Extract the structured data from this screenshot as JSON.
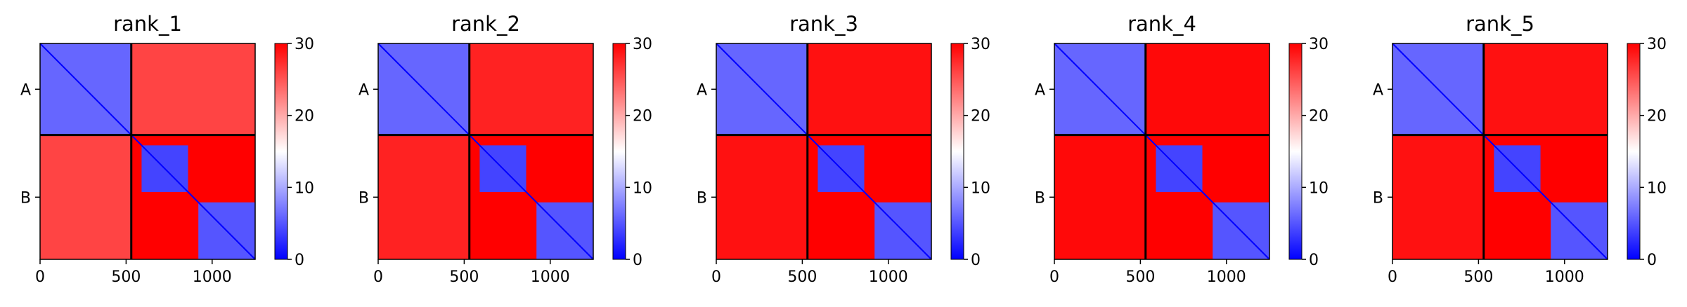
{
  "chart_data": {
    "type": "heatmap",
    "colormap": "bwr",
    "colors": {
      "low": "#0000ff",
      "mid": "#ffffff",
      "high": "#ff0000",
      "divider": "#000000"
    },
    "value_range": [
      0,
      30
    ],
    "colorbar_ticks": [
      "0",
      "10",
      "20",
      "30"
    ],
    "x_range": [
      0,
      1250
    ],
    "x_ticks": [
      "0",
      "500",
      "1000"
    ],
    "x_tick_values": [
      0,
      500,
      1000
    ],
    "chain_boundary": 530,
    "chains": [
      {
        "label": "A",
        "start": 0,
        "end": 530
      },
      {
        "label": "B",
        "start": 530,
        "end": 1250
      }
    ],
    "domain_blocks": [
      {
        "start": 0,
        "end": 530,
        "value": 6
      },
      {
        "start": 590,
        "end": 860,
        "value": 4
      },
      {
        "start": 920,
        "end": 1250,
        "value": 5
      }
    ],
    "background_value": 30,
    "panels": [
      {
        "title": "rank_1",
        "inter_chain_value": 26
      },
      {
        "title": "rank_2",
        "inter_chain_value": 28
      },
      {
        "title": "rank_3",
        "inter_chain_value": 29
      },
      {
        "title": "rank_4",
        "inter_chain_value": 29.5
      },
      {
        "title": "rank_5",
        "inter_chain_value": 29
      }
    ]
  }
}
